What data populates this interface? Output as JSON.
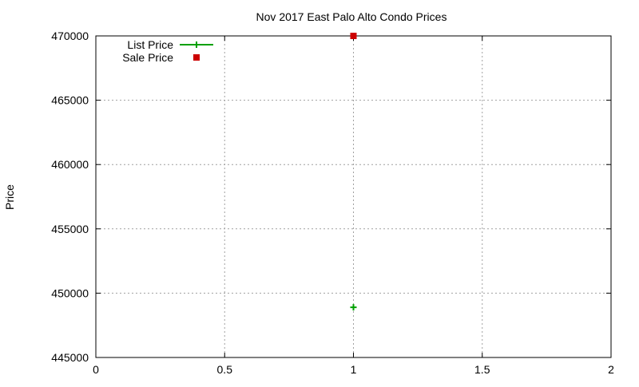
{
  "chart_data": {
    "type": "scatter",
    "title": "Nov 2017 East Palo Alto Condo Prices",
    "xlabel": "",
    "ylabel": "Price",
    "xlim": [
      0,
      2
    ],
    "ylim": [
      445000,
      470000
    ],
    "xticks": [
      "0",
      "0.5",
      "1",
      "1.5",
      "2"
    ],
    "yticks": [
      "445000",
      "450000",
      "455000",
      "460000",
      "465000",
      "470000"
    ],
    "grid": true,
    "legend_placement": "top-left",
    "series": [
      {
        "name": "List Price",
        "marker": "plus",
        "color": "#00a000",
        "points": [
          [
            1,
            448900
          ]
        ]
      },
      {
        "name": "Sale Price",
        "marker": "square",
        "color": "#cc0000",
        "points": [
          [
            1,
            470000
          ]
        ]
      }
    ]
  }
}
